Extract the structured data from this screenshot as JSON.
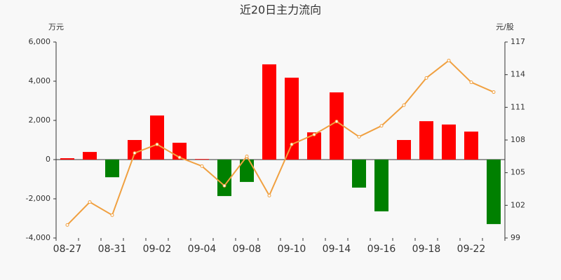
{
  "chart_data": {
    "type": "combo",
    "title": "近20日主力流向",
    "y_label": "万元",
    "y2_label": "元/股",
    "categories": [
      "08-27",
      null,
      "08-31",
      null,
      "09-02",
      null,
      "09-04",
      null,
      "09-08",
      null,
      "09-10",
      null,
      "09-14",
      null,
      "09-16",
      null,
      "09-18",
      null,
      "09-22",
      null
    ],
    "series": [
      {
        "type": "bar",
        "positive_color": "#ff0000",
        "negative_color": "#008000",
        "values": [
          70,
          390,
          -900,
          1000,
          2250,
          860,
          30,
          -1860,
          -1140,
          4860,
          4180,
          1390,
          3430,
          -1430,
          -2640,
          1000,
          1960,
          1790,
          1430,
          -3290
        ]
      },
      {
        "type": "line",
        "axis": "y2",
        "color": "#f0a040",
        "values": [
          100.2,
          102.3,
          101.1,
          106.8,
          107.6,
          106.4,
          105.6,
          103.8,
          106.5,
          102.9,
          107.6,
          108.5,
          109.7,
          108.3,
          109.3,
          111.2,
          113.7,
          115.3,
          113.3,
          112.4
        ]
      }
    ],
    "ylim": [
      -4000,
      6000
    ],
    "yticks": [
      {
        "value": -4000,
        "label": "-4,000"
      },
      {
        "value": -2000,
        "label": "-2,000"
      },
      0,
      {
        "value": 2000,
        "label": "2,000"
      },
      {
        "value": 4000,
        "label": "4,000"
      },
      {
        "value": 6000,
        "label": "6,000"
      }
    ],
    "y2lim": [
      99,
      117
    ],
    "y2ticks": [
      99,
      102,
      105,
      108,
      111,
      114,
      117
    ]
  }
}
